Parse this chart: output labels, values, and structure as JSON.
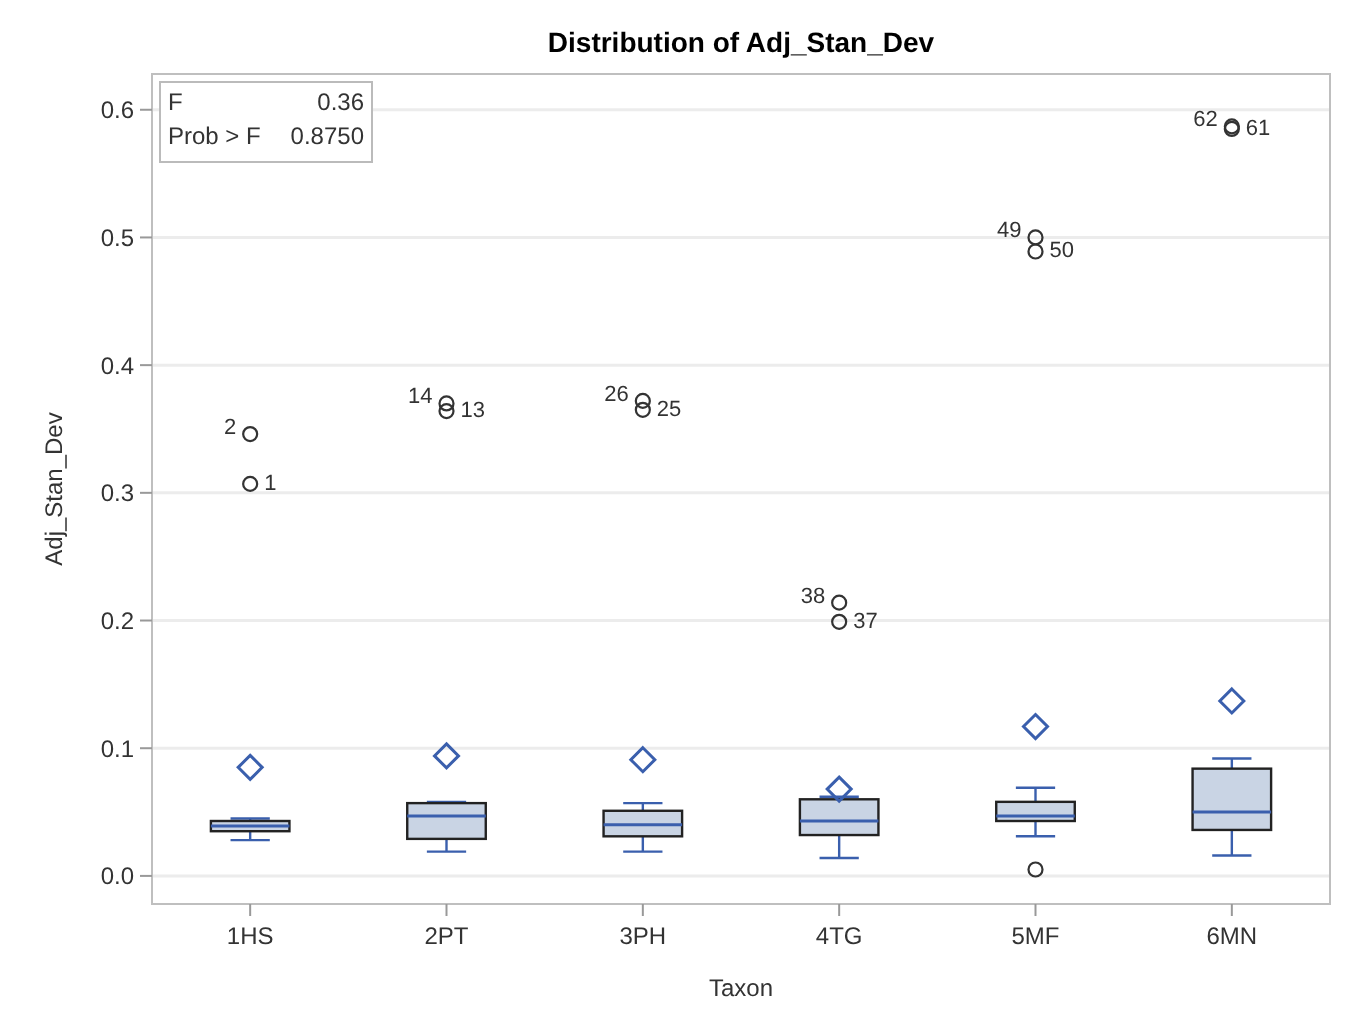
{
  "chart_data": {
    "type": "box",
    "title": "Distribution of Adj_Stan_Dev",
    "xlabel": "Taxon",
    "ylabel": "Adj_Stan_Dev",
    "categories": [
      "1HS",
      "2PT",
      "3PH",
      "4TG",
      "5MF",
      "6MN"
    ],
    "color": "#c9d4e4",
    "boxes": [
      {
        "low": 0.028,
        "q1": 0.035,
        "median": 0.039,
        "q3": 0.043,
        "high": 0.045,
        "mean": 0.085
      },
      {
        "low": 0.019,
        "q1": 0.029,
        "median": 0.047,
        "q3": 0.057,
        "high": 0.058,
        "mean": 0.094
      },
      {
        "low": 0.019,
        "q1": 0.031,
        "median": 0.04,
        "q3": 0.051,
        "high": 0.057,
        "mean": 0.091
      },
      {
        "low": 0.014,
        "q1": 0.032,
        "median": 0.043,
        "q3": 0.06,
        "high": 0.062,
        "mean": 0.068
      },
      {
        "low": 0.031,
        "q1": 0.043,
        "median": 0.047,
        "q3": 0.058,
        "high": 0.069,
        "mean": 0.117
      },
      {
        "low": 0.016,
        "q1": 0.036,
        "median": 0.05,
        "q3": 0.084,
        "high": 0.092,
        "mean": 0.137
      }
    ],
    "series": [
      {
        "type": "scatter",
        "color": "#333333",
        "marker": "circle",
        "x": [
          "1HS",
          "1HS",
          "2PT",
          "2PT",
          "3PH",
          "3PH",
          "4TG",
          "4TG",
          "5MF",
          "5MF",
          "5MF",
          "6MN",
          "6MN"
        ],
        "values": [
          0.346,
          0.307,
          0.37,
          0.364,
          0.372,
          0.365,
          0.214,
          0.199,
          0.5,
          0.489,
          0.005,
          0.587,
          0.585
        ]
      }
    ],
    "ylim": [
      -0.022,
      0.628
    ],
    "yticks": [
      {
        "value": 0,
        "label": "0.0"
      },
      {
        "value": 0.1,
        "label": "0.1"
      },
      {
        "value": 0.2,
        "label": "0.2"
      },
      {
        "value": 0.3,
        "label": "0.3"
      },
      {
        "value": 0.4,
        "label": "0.4"
      },
      {
        "value": 0.5,
        "label": "0.5"
      },
      {
        "value": 0.6,
        "label": "0.6"
      }
    ],
    "grid": "y",
    "annotations": [
      "F",
      "0.36",
      "Prob > F",
      "0.8750",
      {
        "text": "2",
        "x": "1HS",
        "y": 0.346
      },
      {
        "text": "1",
        "x": "1HS",
        "y": 0.307
      },
      {
        "text": "14",
        "x": "2PT",
        "y": 0.37
      },
      {
        "text": "13",
        "x": "2PT",
        "y": 0.364
      },
      {
        "text": "26",
        "x": "3PH",
        "y": 0.372
      },
      {
        "text": "25",
        "x": "3PH",
        "y": 0.365
      },
      {
        "text": "38",
        "x": "4TG",
        "y": 0.214
      },
      {
        "text": "37",
        "x": "4TG",
        "y": 0.199
      },
      {
        "text": "49",
        "x": "5MF",
        "y": 0.5
      },
      {
        "text": "50",
        "x": "5MF",
        "y": 0.489
      },
      {
        "text": "62",
        "x": "6MN",
        "y": 0.587
      },
      {
        "text": "61",
        "x": "6MN",
        "y": 0.585
      }
    ]
  }
}
